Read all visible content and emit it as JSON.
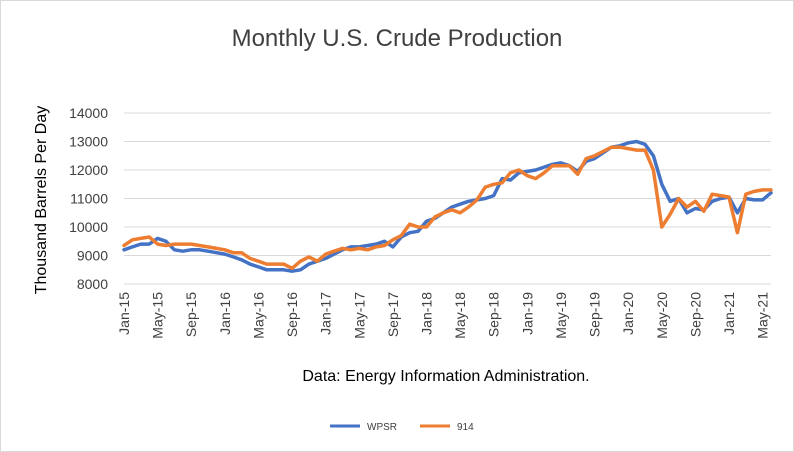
{
  "chart_data": {
    "type": "line",
    "title": "Monthly U.S. Crude Production",
    "ylabel": "Thousand Barrels Per Day",
    "xlabel": "",
    "annotation": "Data: Energy Information Administration.",
    "ylim": [
      8000,
      14000
    ],
    "yticks": [
      8000,
      9000,
      10000,
      11000,
      12000,
      13000,
      14000
    ],
    "grid": "horizontal",
    "legend_position": "bottom",
    "x": [
      "Jan-15",
      "Feb-15",
      "Mar-15",
      "Apr-15",
      "May-15",
      "Jun-15",
      "Jul-15",
      "Aug-15",
      "Sep-15",
      "Oct-15",
      "Nov-15",
      "Dec-15",
      "Jan-16",
      "Feb-16",
      "Mar-16",
      "Apr-16",
      "May-16",
      "Jun-16",
      "Jul-16",
      "Aug-16",
      "Sep-16",
      "Oct-16",
      "Nov-16",
      "Dec-16",
      "Jan-17",
      "Feb-17",
      "Mar-17",
      "Apr-17",
      "May-17",
      "Jun-17",
      "Jul-17",
      "Aug-17",
      "Sep-17",
      "Oct-17",
      "Nov-17",
      "Dec-17",
      "Jan-18",
      "Feb-18",
      "Mar-18",
      "Apr-18",
      "May-18",
      "Jun-18",
      "Jul-18",
      "Aug-18",
      "Sep-18",
      "Oct-18",
      "Nov-18",
      "Dec-18",
      "Jan-19",
      "Feb-19",
      "Mar-19",
      "Apr-19",
      "May-19",
      "Jun-19",
      "Jul-19",
      "Aug-19",
      "Sep-19",
      "Oct-19",
      "Nov-19",
      "Dec-19",
      "Jan-20",
      "Feb-20",
      "Mar-20",
      "Apr-20",
      "May-20",
      "Jun-20",
      "Jul-20",
      "Aug-20",
      "Sep-20",
      "Oct-20",
      "Nov-20",
      "Dec-20",
      "Jan-21",
      "Feb-21",
      "Mar-21",
      "Apr-21",
      "May-21",
      "Jun-21"
    ],
    "x_tick_labels": [
      "Jan-15",
      "May-15",
      "Sep-15",
      "Jan-16",
      "May-16",
      "Sep-16",
      "Jan-17",
      "May-17",
      "Sep-17",
      "Jan-18",
      "May-18",
      "Sep-18",
      "Jan-19",
      "May-19",
      "Sep-19",
      "Jan-20",
      "May-20",
      "Sep-20",
      "Jan-21",
      "May-21"
    ],
    "series": [
      {
        "name": "WPSR",
        "color": "#4472C4",
        "values": [
          9200,
          9300,
          9400,
          9400,
          9600,
          9500,
          9200,
          9150,
          9200,
          9200,
          9150,
          9100,
          9050,
          8950,
          8850,
          8700,
          8600,
          8500,
          8500,
          8500,
          8450,
          8500,
          8700,
          8800,
          8900,
          9050,
          9200,
          9300,
          9300,
          9350,
          9400,
          9500,
          9300,
          9650,
          9800,
          9850,
          10200,
          10300,
          10500,
          10700,
          10800,
          10900,
          10950,
          11000,
          11100,
          11700,
          11650,
          11900,
          11950,
          12000,
          12100,
          12200,
          12250,
          12150,
          11950,
          12300,
          12400,
          12600,
          12800,
          12850,
          12950,
          13000,
          12900,
          12500,
          11500,
          10900,
          11000,
          10500,
          10650,
          10600,
          10900,
          11000,
          11050,
          10500,
          11000,
          10950,
          10950,
          11200
        ]
      },
      {
        "name": "914",
        "color": "#ED7D31",
        "values": [
          9350,
          9550,
          9600,
          9650,
          9400,
          9350,
          9400,
          9400,
          9400,
          9350,
          9300,
          9250,
          9200,
          9100,
          9100,
          8900,
          8800,
          8700,
          8700,
          8700,
          8550,
          8800,
          8950,
          8800,
          9050,
          9150,
          9250,
          9200,
          9250,
          9200,
          9300,
          9350,
          9550,
          9700,
          10100,
          10000,
          10000,
          10350,
          10500,
          10600,
          10500,
          10700,
          10950,
          11400,
          11500,
          11550,
          11900,
          12000,
          11800,
          11700,
          11900,
          12150,
          12150,
          12150,
          11850,
          12400,
          12500,
          12650,
          12800,
          12800,
          12750,
          12700,
          12700,
          12000,
          10000,
          10450,
          11000,
          10700,
          10900,
          10550,
          11150,
          11100,
          11050,
          9800,
          11150,
          11250,
          11300,
          11300
        ]
      }
    ]
  }
}
